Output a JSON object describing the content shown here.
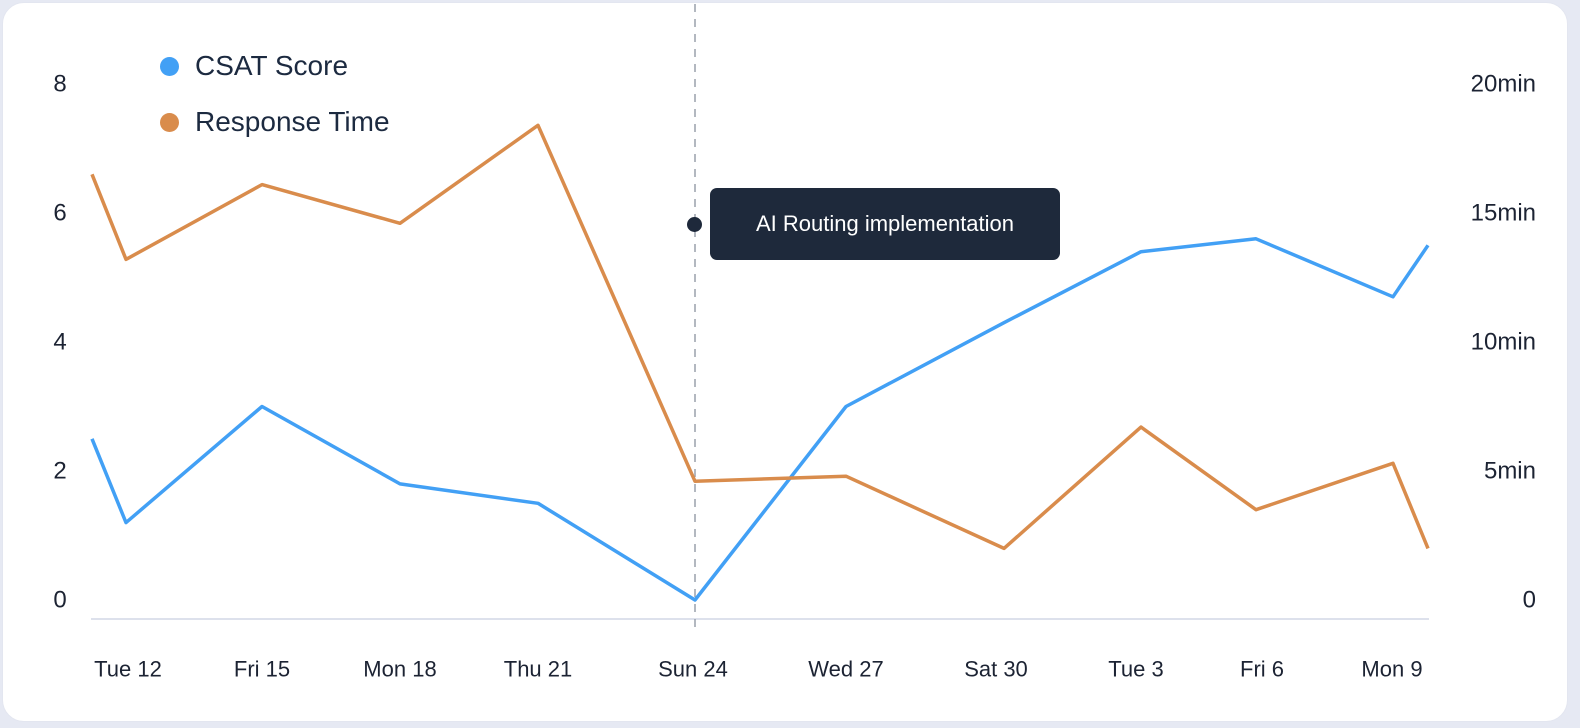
{
  "chart_data": {
    "type": "line",
    "title": "",
    "xlabel": "",
    "ylabel_left": "CSAT Score",
    "ylabel_right": "Response Time",
    "x_tick_labels": [
      "Tue 12",
      "Fri 15",
      "Mon 18",
      "Thu 21",
      "Sun 24",
      "Wed 27",
      "Sat 30",
      "Tue 3",
      "Fri 6",
      "Mon 9"
    ],
    "x": [
      "Tue 12",
      "Wed 13",
      "Fri 15",
      "Mon 18",
      "Thu 21",
      "Sun 24",
      "Wed 27",
      "Sat 30",
      "Tue 3",
      "Fri 6",
      "Mon 9",
      "Tue 10"
    ],
    "series": [
      {
        "name": "CSAT Score",
        "axis": "left",
        "color": "#42a0f5",
        "values": [
          2.5,
          1.2,
          3.0,
          1.8,
          1.5,
          0.0,
          3.0,
          4.3,
          5.4,
          5.6,
          4.7,
          5.5
        ]
      },
      {
        "name": "Response Time",
        "axis": "right",
        "unit": "min",
        "color": "#d98c4c",
        "values": [
          16.5,
          13.2,
          16.1,
          14.6,
          18.4,
          4.6,
          4.8,
          2.0,
          6.7,
          3.5,
          5.3,
          2.0
        ]
      }
    ],
    "y_left": {
      "ticks": [
        "0",
        "2",
        "4",
        "6",
        "8"
      ],
      "range": [
        0,
        8
      ]
    },
    "y_right": {
      "ticks": [
        "0",
        "5min",
        "10min",
        "15min",
        "20min"
      ],
      "range": [
        0,
        20
      ]
    },
    "annotation": {
      "x": "Sun 24",
      "label": "AI Routing implementation",
      "style": "dashed vertical line"
    },
    "legend_position": "top-left",
    "grid": false
  },
  "legend": {
    "items": [
      {
        "label": "CSAT Score",
        "color": "#42a0f5"
      },
      {
        "label": "Response Time",
        "color": "#d98c4c"
      }
    ]
  },
  "tooltip": {
    "label": "AI Routing implementation"
  }
}
